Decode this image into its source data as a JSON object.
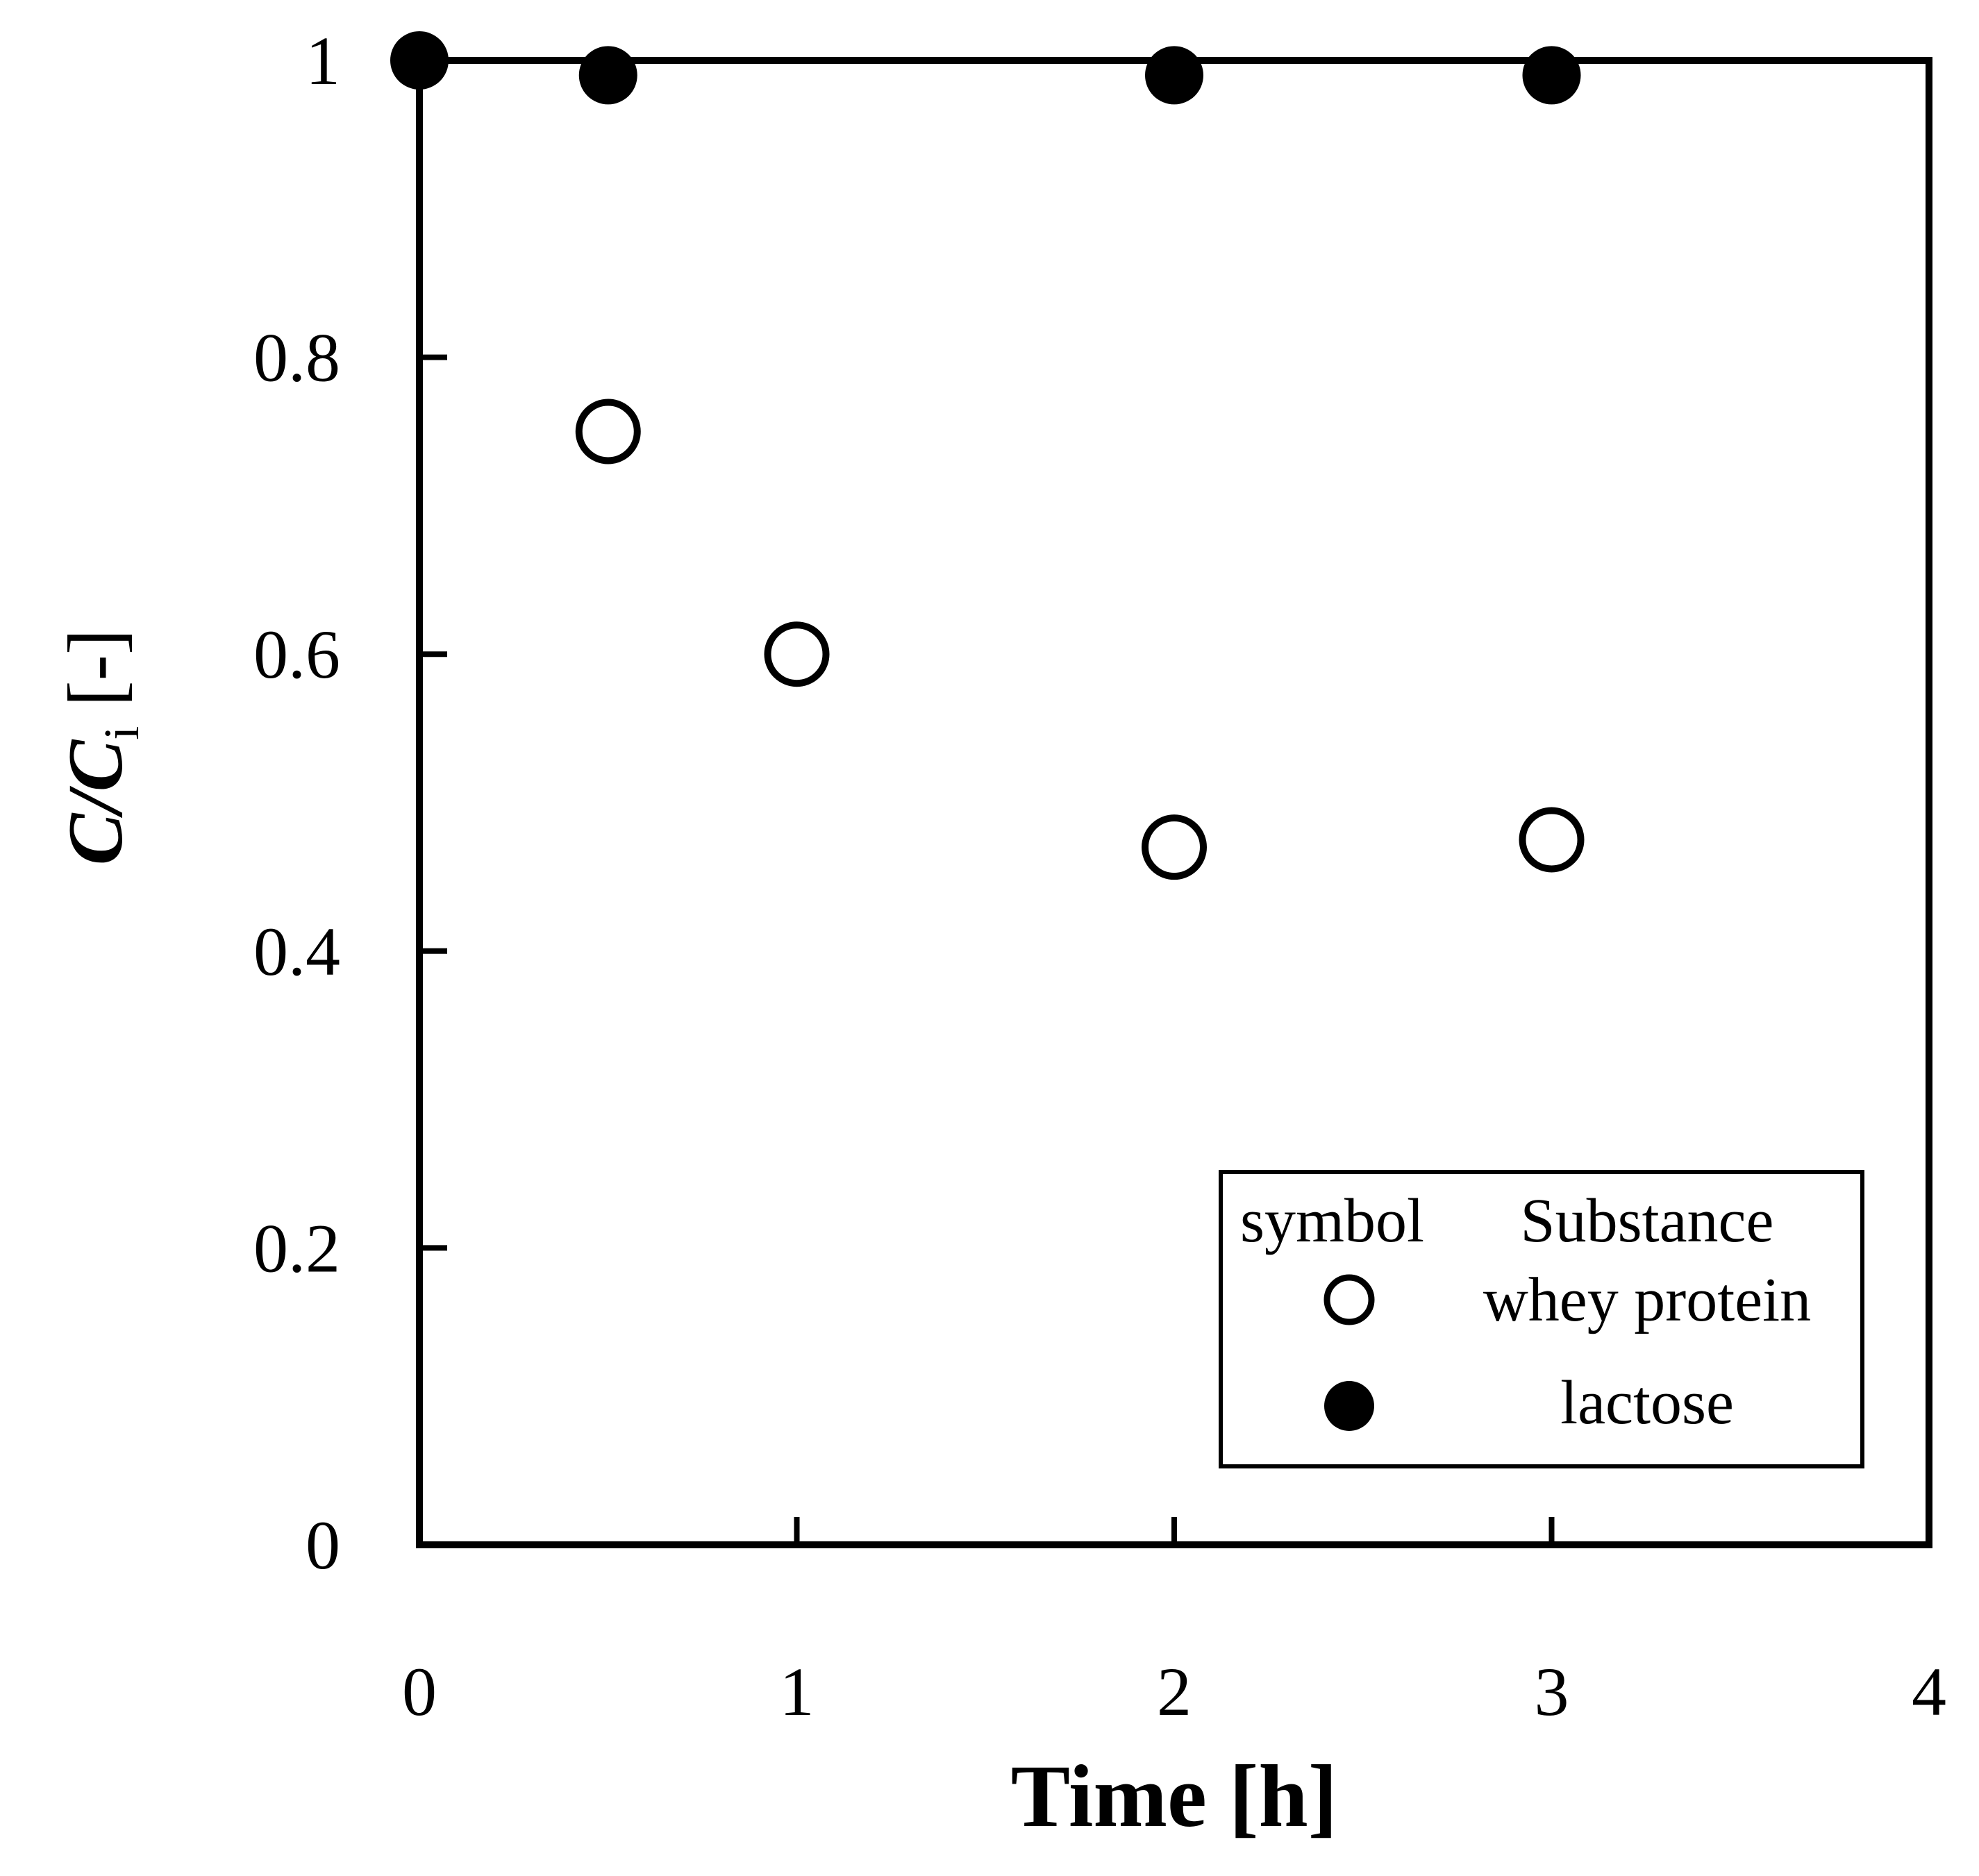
{
  "chart_data": {
    "type": "scatter",
    "xlabel": "Time [h]",
    "ylabel": {
      "main": "C/C",
      "subscript": "i",
      "suffix": " [-]"
    },
    "xlim": [
      0,
      4
    ],
    "ylim": [
      0,
      1
    ],
    "x_ticks": [
      0,
      1,
      2,
      3,
      4
    ],
    "x_tick_labels": [
      "0",
      "1",
      "2",
      "3",
      "4"
    ],
    "y_ticks": [
      0,
      0.2,
      0.4,
      0.6,
      0.8,
      1
    ],
    "y_tick_labels": [
      "0",
      "0.2",
      "0.4",
      "0.6",
      "0.8",
      "1"
    ],
    "grid": false,
    "legend": {
      "position": "bottom-right",
      "header_symbol": "symbol",
      "header_substance": "Substance"
    },
    "series": [
      {
        "name": "whey protein",
        "marker": "open-circle",
        "x": [
          0.5,
          1,
          2,
          3
        ],
        "y": [
          0.75,
          0.6,
          0.47,
          0.475
        ]
      },
      {
        "name": "lactose",
        "marker": "filled-circle",
        "x": [
          0,
          0.5,
          2,
          3
        ],
        "y": [
          1.0,
          0.99,
          0.99,
          0.99
        ]
      }
    ],
    "colors": {
      "ink": "#000000",
      "background": "#ffffff"
    }
  }
}
